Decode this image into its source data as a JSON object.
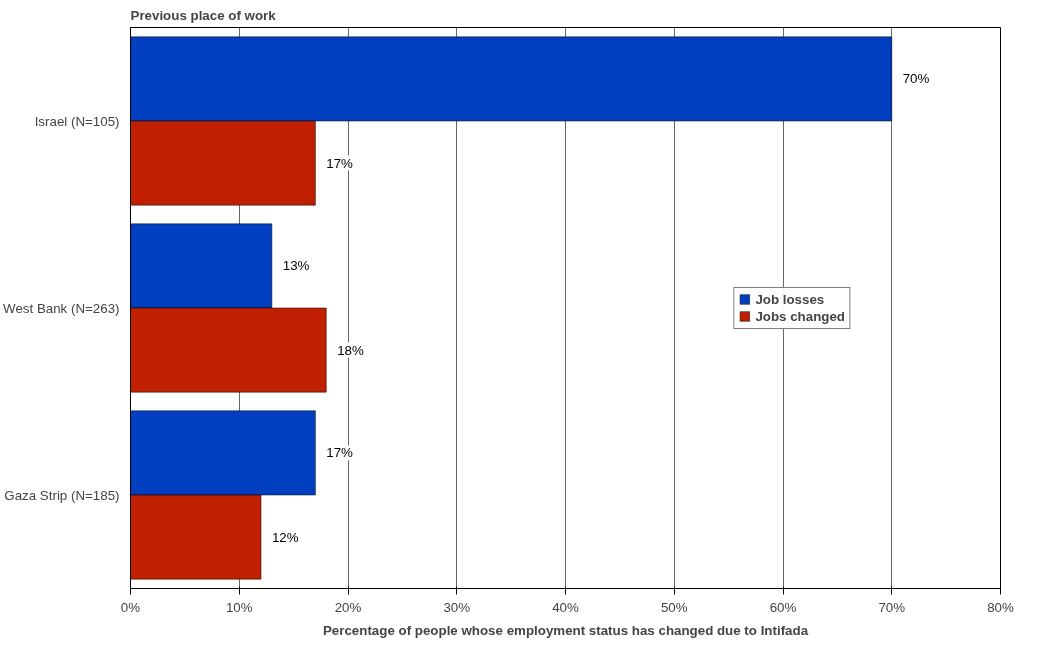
{
  "chart_data": {
    "type": "bar",
    "orientation": "horizontal",
    "title": "Previous place of work",
    "xlabel": "Percentage of people whose employment status has changed due to Intifada",
    "categories": [
      "Israel (N=105)",
      "West Bank (N=263)",
      "Gaza Strip (N=185)"
    ],
    "series": [
      {
        "name": "Job losses",
        "color": "#0040c0",
        "values": [
          70,
          13,
          17
        ],
        "value_labels": [
          "70%",
          "13%",
          "17%"
        ]
      },
      {
        "name": "Jobs changed",
        "color": "#c02000",
        "values": [
          17,
          18,
          12
        ],
        "value_labels": [
          "17%",
          "18%",
          "12%"
        ]
      }
    ],
    "xlim": [
      0,
      80
    ],
    "xticks": [
      {
        "value": 0,
        "label": "0%"
      },
      {
        "value": 10,
        "label": "10%"
      },
      {
        "value": 20,
        "label": "20%"
      },
      {
        "value": 30,
        "label": "30%"
      },
      {
        "value": 40,
        "label": "40%"
      },
      {
        "value": 50,
        "label": "50%"
      },
      {
        "value": 60,
        "label": "60%"
      },
      {
        "value": 70,
        "label": "70%"
      },
      {
        "value": 80,
        "label": "80%"
      }
    ],
    "grid": "x",
    "legend": "right"
  }
}
